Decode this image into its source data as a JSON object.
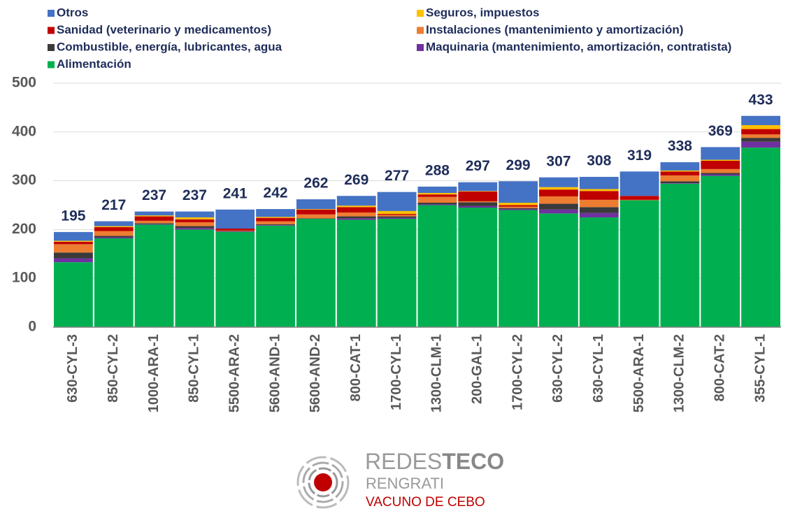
{
  "chart_data": {
    "type": "stacked_bar",
    "categories": [
      "630-CYL-3",
      "850-CYL-2",
      "1000-ARA-1",
      "850-CYL-1",
      "5500-ARA-2",
      "5600-AND-1",
      "5600-AND-2",
      "800-CAT-1",
      "1700-CYL-1",
      "1300-CLM-1",
      "200-GAL-1",
      "1700-CYL-2",
      "630-CYL-2",
      "630-CYL-1",
      "5500-ARA-1",
      "1300-CLM-2",
      "800-CAT-2",
      "355-CYL-1"
    ],
    "series": [
      {
        "name": "Alimentación",
        "color": "#00b050",
        "values": [
          133,
          182,
          210,
          200,
          195,
          208,
          222,
          220,
          222,
          250,
          245,
          240,
          233,
          225,
          260,
          294,
          310,
          368
        ]
      },
      {
        "name": "Maquinaria (mantenimiento, amortización, contratista)",
        "color": "#7030a0",
        "values": [
          8,
          2,
          1,
          3,
          1,
          1,
          0,
          3,
          2,
          2,
          3,
          2,
          8,
          9,
          0,
          1,
          3,
          12
        ]
      },
      {
        "name": "Combustible, energía, lubricantes, agua",
        "color": "#3a3a3a",
        "values": [
          12,
          3,
          2,
          4,
          1,
          2,
          1,
          4,
          3,
          3,
          8,
          2,
          12,
          12,
          0,
          4,
          3,
          8
        ]
      },
      {
        "name": "Instalaciones (mantenimiento y amortización)",
        "color": "#ed7d31",
        "values": [
          17,
          10,
          5,
          8,
          1,
          6,
          8,
          8,
          3,
          12,
          2,
          3,
          15,
          15,
          1,
          12,
          8,
          7
        ]
      },
      {
        "name": "Sanidad (veterinario y medicamentos)",
        "color": "#c00000",
        "values": [
          5,
          8,
          9,
          6,
          4,
          7,
          10,
          11,
          2,
          5,
          20,
          3,
          14,
          18,
          8,
          8,
          17,
          11
        ]
      },
      {
        "name": "Seguros, impuestos",
        "color": "#ffc000",
        "values": [
          2,
          2,
          2,
          4,
          0,
          2,
          1,
          3,
          6,
          3,
          1,
          5,
          5,
          4,
          0,
          2,
          2,
          8
        ]
      },
      {
        "name": "Otros",
        "color": "#4472c4",
        "values": [
          18,
          10,
          8,
          12,
          39,
          16,
          20,
          20,
          39,
          13,
          18,
          44,
          20,
          25,
          50,
          17,
          26,
          19
        ]
      }
    ],
    "totals": [
      195,
      217,
      237,
      237,
      241,
      242,
      262,
      269,
      277,
      288,
      297,
      299,
      307,
      308,
      319,
      338,
      369,
      433
    ],
    "ylim": [
      0,
      500
    ],
    "yticks": [
      0,
      100,
      200,
      300,
      400,
      500
    ],
    "grid": true
  },
  "logo": {
    "brand_light": "REDES",
    "brand_bold": "TECO",
    "line2": "RENGRATI",
    "line3": "VACUNO DE CEBO"
  }
}
